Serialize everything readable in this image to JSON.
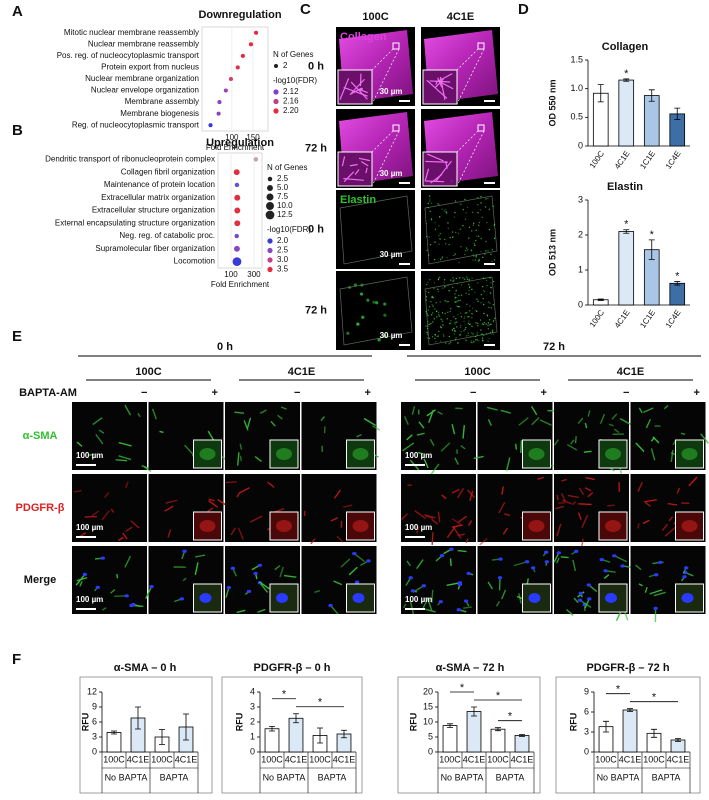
{
  "panel_labels": [
    "A",
    "B",
    "C",
    "D",
    "E",
    "F"
  ],
  "chart_data": [
    {
      "type": "dot",
      "title": "Downregulation",
      "categories": [
        "Mitotic nuclear membrane reassembly",
        "Nuclear membrane reassembly",
        "Pos. reg. of nucleocytoplasmic transport",
        "Protein export from nucleus",
        "Nuclear membrane organization",
        "Nuclear envelope organization",
        "Membrane assembly",
        "Membrane biogenesis",
        "Reg. of nucleocytoplasmic transport"
      ],
      "values": [
        157,
        145,
        126,
        114,
        98,
        86,
        71,
        69,
        50
      ],
      "sizes": [
        2,
        2,
        2,
        2,
        2,
        2,
        2,
        2,
        2
      ],
      "colors": [
        "#e8283c",
        "#e8283c",
        "#e8283c",
        "#e2304a",
        "#d83c62",
        "#a040b8",
        "#8a44c4",
        "#8a44c4",
        "#3a3ad8"
      ],
      "xlim": [
        30,
        185
      ],
      "xticks": [
        100,
        150
      ],
      "xlabel": "Fold Enrichment",
      "legend": {
        "size_title": "N of Genes",
        "sizes": [
          2
        ],
        "color_title": "-log10(FDR)",
        "color_levels": [
          2.12,
          2.16,
          {
            "value": 2.2,
            "label": "2.20"
          }
        ],
        "level_colors": [
          "#8040c8",
          "#c03c8c",
          "#e8283c"
        ]
      }
    },
    {
      "type": "dot",
      "title": "Upregulation",
      "categories": [
        "Dendritic transport of ribonucleoprotein complex",
        "Collagen fibril organization",
        "Maintenance of protein location",
        "Extracellular matrix organization",
        "Extracellular structure organization",
        "External encapsulating structure organization",
        "Neg. reg. of catabolic proc.",
        "Supramolecular fiber organization",
        "Locomotion"
      ],
      "values": [
        317,
        150,
        152,
        155,
        155,
        155,
        150,
        152,
        152
      ],
      "sizes": [
        2.5,
        5,
        2.5,
        5,
        5,
        5,
        2.5,
        5,
        12.5
      ],
      "colors": [
        "#c8a0b8",
        "#e03040",
        "#6a50d0",
        "#e03040",
        "#e03040",
        "#e03040",
        "#7a48c8",
        "#8a44c4",
        "#3a3ad8"
      ],
      "xlim": [
        -13,
        370
      ],
      "xticks": [
        100,
        300
      ],
      "xlabel": "Fold Enrichment",
      "legend": {
        "size_title": "N of Genes",
        "sizes": [
          2.5,
          {
            "value": 5,
            "label": "5.0"
          },
          7.5,
          {
            "value": 10,
            "label": "10.0"
          },
          12.5
        ],
        "color_title": "-log10(FDR)",
        "color_levels": [
          {
            "value": 2,
            "label": "2.0"
          },
          2.5,
          {
            "value": 3,
            "label": "3.0"
          },
          3.5
        ],
        "level_colors": [
          "#3a3ad8",
          "#8a44c4",
          "#c83c8c",
          "#e8283c"
        ]
      }
    },
    {
      "type": "bar",
      "title": "Collagen",
      "ylabel": "OD 550 nm",
      "categories": [
        "100C",
        "4C1E",
        "1C1E",
        "1C4E"
      ],
      "values": [
        0.92,
        1.15,
        0.88,
        0.56
      ],
      "errors": [
        0.15,
        0.02,
        0.1,
        0.1
      ],
      "colors": [
        "#ffffff",
        "#dbe8f5",
        "#a9c6e6",
        "#3d6fa6"
      ],
      "ylim": [
        0,
        1.5
      ],
      "yticks": [
        0,
        0.5,
        {
          "value": 1,
          "label": "1.0"
        },
        1.5
      ],
      "annotations": [
        {
          "category": "4C1E",
          "label": "*"
        }
      ]
    },
    {
      "type": "bar",
      "title": "Elastin",
      "ylabel": "OD 513 nm",
      "categories": [
        "100C",
        "4C1E",
        "1C1E",
        "1C4E"
      ],
      "values": [
        0.15,
        2.1,
        1.58,
        0.62
      ],
      "errors": [
        0.02,
        0.05,
        0.28,
        0.05
      ],
      "colors": [
        "#ffffff",
        "#dbe8f5",
        "#a9c6e6",
        "#3d6fa6"
      ],
      "ylim": [
        0,
        3
      ],
      "yticks": [
        0,
        1,
        2,
        3
      ],
      "annotations": [
        {
          "category": "4C1E",
          "label": "*"
        },
        {
          "category": "1C1E",
          "label": "*"
        },
        {
          "category": "1C4E",
          "label": "*"
        }
      ]
    },
    {
      "type": "bar",
      "title": "α-SMA – 0 h",
      "ylabel": "RFU",
      "categories": [
        "100C",
        "4C1E",
        "100C",
        "4C1E"
      ],
      "groups": [
        "No BAPTA",
        "BAPTA"
      ],
      "values": [
        3.9,
        6.8,
        3.0,
        5.0
      ],
      "errors": [
        0.3,
        2.2,
        1.5,
        2.6
      ],
      "colors": [
        "#ffffff",
        "#dbe8f5",
        "#ffffff",
        "#dbe8f5"
      ],
      "ylim": [
        0,
        12
      ],
      "yticks": [
        0,
        3,
        6,
        9,
        12
      ],
      "brackets": []
    },
    {
      "type": "bar",
      "title": "PDGFR-β – 0 h",
      "ylabel": "RFU",
      "categories": [
        "100C",
        "4C1E",
        "100C",
        "4C1E"
      ],
      "groups": [
        "No BAPTA",
        "BAPTA"
      ],
      "values": [
        1.55,
        2.25,
        1.1,
        1.2
      ],
      "errors": [
        0.15,
        0.3,
        0.5,
        0.25
      ],
      "colors": [
        "#ffffff",
        "#dbe8f5",
        "#ffffff",
        "#dbe8f5"
      ],
      "ylim": [
        0,
        4
      ],
      "yticks": [
        0,
        1,
        2,
        3,
        4
      ],
      "brackets": [
        {
          "between": [
            0,
            1
          ],
          "label": "*"
        },
        {
          "between": [
            1,
            3
          ],
          "label": "*"
        }
      ]
    },
    {
      "type": "bar",
      "title": "α-SMA – 72 h",
      "ylabel": "RFU",
      "categories": [
        "100C",
        "4C1E",
        "100C",
        "4C1E"
      ],
      "groups": [
        "No BAPTA",
        "BAPTA"
      ],
      "values": [
        8.8,
        13.5,
        7.6,
        5.5
      ],
      "errors": [
        0.6,
        1.5,
        0.5,
        0.3
      ],
      "colors": [
        "#ffffff",
        "#dbe8f5",
        "#ffffff",
        "#dbe8f5"
      ],
      "ylim": [
        0,
        20
      ],
      "yticks": [
        0,
        5,
        10,
        15,
        20
      ],
      "brackets": [
        {
          "between": [
            0,
            1
          ],
          "label": "*"
        },
        {
          "between": [
            1,
            3
          ],
          "label": "*"
        },
        {
          "between": [
            2,
            3
          ],
          "label": "*"
        }
      ]
    },
    {
      "type": "bar",
      "title": "PDGFR-β – 72 h",
      "ylabel": "RFU",
      "categories": [
        "100C",
        "4C1E",
        "100C",
        "4C1E"
      ],
      "groups": [
        "No BAPTA",
        "BAPTA"
      ],
      "values": [
        3.8,
        6.3,
        2.8,
        1.8
      ],
      "errors": [
        0.8,
        0.2,
        0.6,
        0.2
      ],
      "colors": [
        "#ffffff",
        "#dbe8f5",
        "#ffffff",
        "#dbe8f5"
      ],
      "ylim": [
        0,
        9
      ],
      "yticks": [
        0,
        3,
        6,
        9
      ],
      "brackets": [
        {
          "between": [
            0,
            1
          ],
          "label": "*"
        },
        {
          "between": [
            1,
            3
          ],
          "label": "*"
        }
      ]
    }
  ],
  "image_panel_c": {
    "columns": [
      "100C",
      "4C1E"
    ],
    "rows": [
      "0 h",
      "72 h",
      "0 h",
      "72 h"
    ],
    "stains": [
      "Collagen",
      "Elastin"
    ],
    "scale_bar": "30 µm"
  },
  "image_panel_e": {
    "timepoints": [
      "0 h",
      "72 h"
    ],
    "groups": [
      "100C",
      "4C1E"
    ],
    "treatment": "BAPTA-AM",
    "signs": [
      "−",
      "+"
    ],
    "rows": [
      "α-SMA",
      "PDGFR-β",
      "Merge"
    ],
    "scale_bar": "100 µm"
  }
}
